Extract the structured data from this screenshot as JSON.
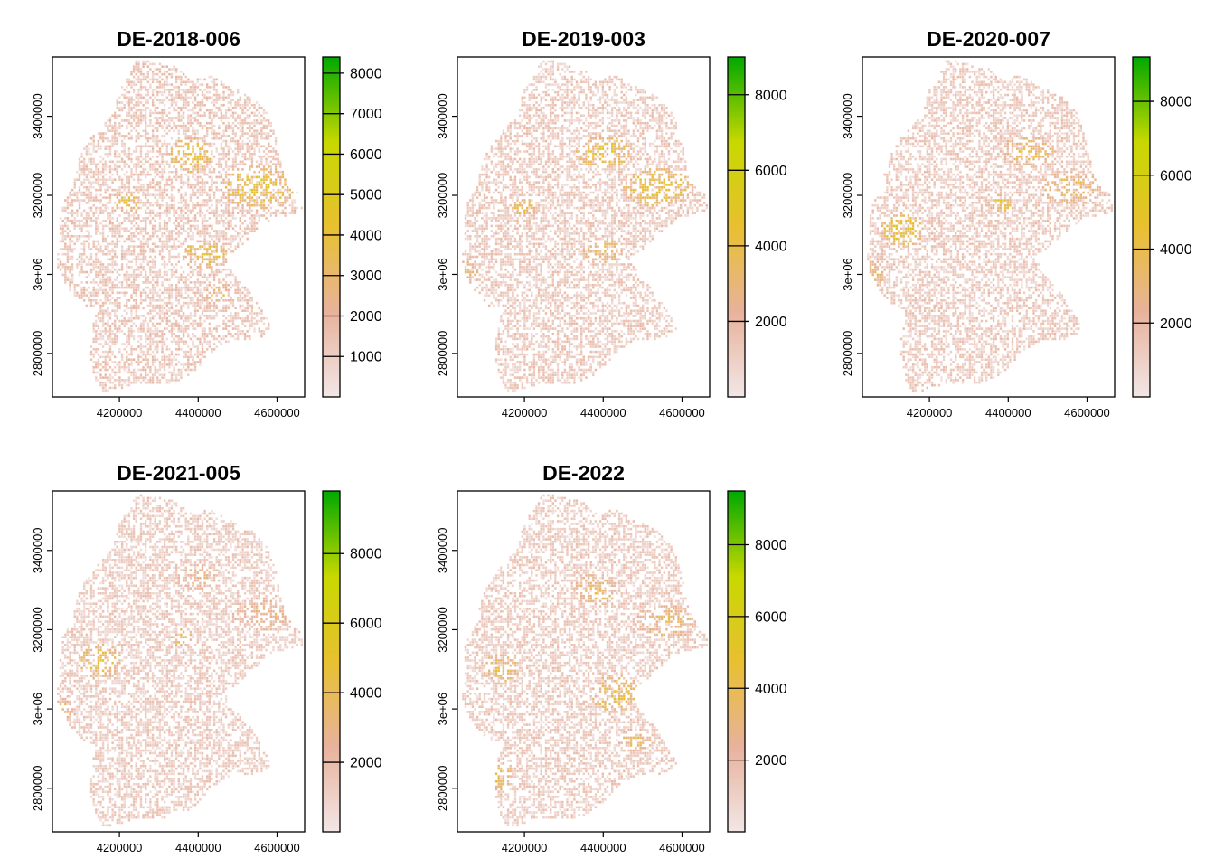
{
  "panels": [
    {
      "title": "DE-2018-006",
      "colorbar": {
        "min": 0,
        "max": 8400,
        "ticks": [
          1000,
          2000,
          3000,
          4000,
          5000,
          6000,
          7000,
          8000
        ]
      },
      "hotspots": [
        {
          "x": 4380000,
          "y": 3300000,
          "rx": 55000,
          "ry": 45000,
          "v": 5200
        },
        {
          "x": 4550000,
          "y": 3220000,
          "rx": 95000,
          "ry": 55000,
          "v": 5000
        },
        {
          "x": 4220000,
          "y": 3180000,
          "rx": 35000,
          "ry": 25000,
          "v": 4600
        },
        {
          "x": 4420000,
          "y": 3050000,
          "rx": 60000,
          "ry": 40000,
          "v": 4500
        },
        {
          "x": 4450000,
          "y": 2950000,
          "rx": 40000,
          "ry": 30000,
          "v": 3600
        }
      ]
    },
    {
      "title": "DE-2019-003",
      "colorbar": {
        "min": 0,
        "max": 9000,
        "ticks": [
          2000,
          4000,
          6000,
          8000
        ]
      },
      "hotspots": [
        {
          "x": 4400000,
          "y": 3310000,
          "rx": 70000,
          "ry": 40000,
          "v": 5500
        },
        {
          "x": 4540000,
          "y": 3220000,
          "rx": 90000,
          "ry": 50000,
          "v": 5200
        },
        {
          "x": 4200000,
          "y": 3170000,
          "rx": 30000,
          "ry": 22000,
          "v": 4800
        },
        {
          "x": 4400000,
          "y": 3060000,
          "rx": 50000,
          "ry": 35000,
          "v": 4300
        },
        {
          "x": 4060000,
          "y": 3000000,
          "rx": 30000,
          "ry": 40000,
          "v": 3500
        }
      ]
    },
    {
      "title": "DE-2020-007",
      "colorbar": {
        "min": 0,
        "max": 9200,
        "ticks": [
          2000,
          4000,
          6000,
          8000
        ]
      },
      "hotspots": [
        {
          "x": 4380000,
          "y": 3180000,
          "rx": 30000,
          "ry": 22000,
          "v": 5800
        },
        {
          "x": 4130000,
          "y": 3110000,
          "rx": 55000,
          "ry": 45000,
          "v": 5300
        },
        {
          "x": 4450000,
          "y": 3310000,
          "rx": 70000,
          "ry": 40000,
          "v": 4500
        },
        {
          "x": 4560000,
          "y": 3220000,
          "rx": 80000,
          "ry": 45000,
          "v": 4000
        },
        {
          "x": 4060000,
          "y": 3000000,
          "rx": 30000,
          "ry": 35000,
          "v": 3800
        }
      ]
    },
    {
      "title": "DE-2021-005",
      "colorbar": {
        "min": 0,
        "max": 9800,
        "ticks": [
          2000,
          4000,
          6000,
          8000
        ]
      },
      "hotspots": [
        {
          "x": 4150000,
          "y": 3120000,
          "rx": 55000,
          "ry": 45000,
          "v": 5200
        },
        {
          "x": 4360000,
          "y": 3180000,
          "rx": 30000,
          "ry": 22000,
          "v": 5400
        },
        {
          "x": 4560000,
          "y": 3240000,
          "rx": 80000,
          "ry": 45000,
          "v": 3600
        },
        {
          "x": 4400000,
          "y": 3330000,
          "rx": 60000,
          "ry": 35000,
          "v": 3400
        },
        {
          "x": 4060000,
          "y": 3000000,
          "rx": 30000,
          "ry": 35000,
          "v": 3500
        }
      ]
    },
    {
      "title": "DE-2022",
      "colorbar": {
        "min": 0,
        "max": 9500,
        "ticks": [
          2000,
          4000,
          6000,
          8000
        ]
      },
      "hotspots": [
        {
          "x": 4140000,
          "y": 3100000,
          "rx": 45000,
          "ry": 40000,
          "v": 4800
        },
        {
          "x": 4430000,
          "y": 3040000,
          "rx": 60000,
          "ry": 50000,
          "v": 5200
        },
        {
          "x": 4380000,
          "y": 3300000,
          "rx": 60000,
          "ry": 40000,
          "v": 4200
        },
        {
          "x": 4560000,
          "y": 3220000,
          "rx": 80000,
          "ry": 45000,
          "v": 4000
        },
        {
          "x": 4130000,
          "y": 2830000,
          "rx": 40000,
          "ry": 40000,
          "v": 4800
        },
        {
          "x": 4480000,
          "y": 2920000,
          "rx": 40000,
          "ry": 30000,
          "v": 4300
        }
      ]
    }
  ],
  "x_axis": {
    "ticks": [
      4200000,
      4400000,
      4600000
    ],
    "range": [
      4030000,
      4670000
    ]
  },
  "y_axis": {
    "ticks": [
      2800000,
      3000000,
      3200000,
      3400000
    ],
    "tick_labels": [
      "2800000",
      "3e+06",
      "3200000",
      "3400000"
    ],
    "range": [
      2690000,
      3550000
    ]
  },
  "colors": {
    "low": "#f2e6e6",
    "mid_low": "#e8b29c",
    "mid": "#e8c030",
    "mid_high": "#c8d800",
    "high": "#00a800"
  }
}
